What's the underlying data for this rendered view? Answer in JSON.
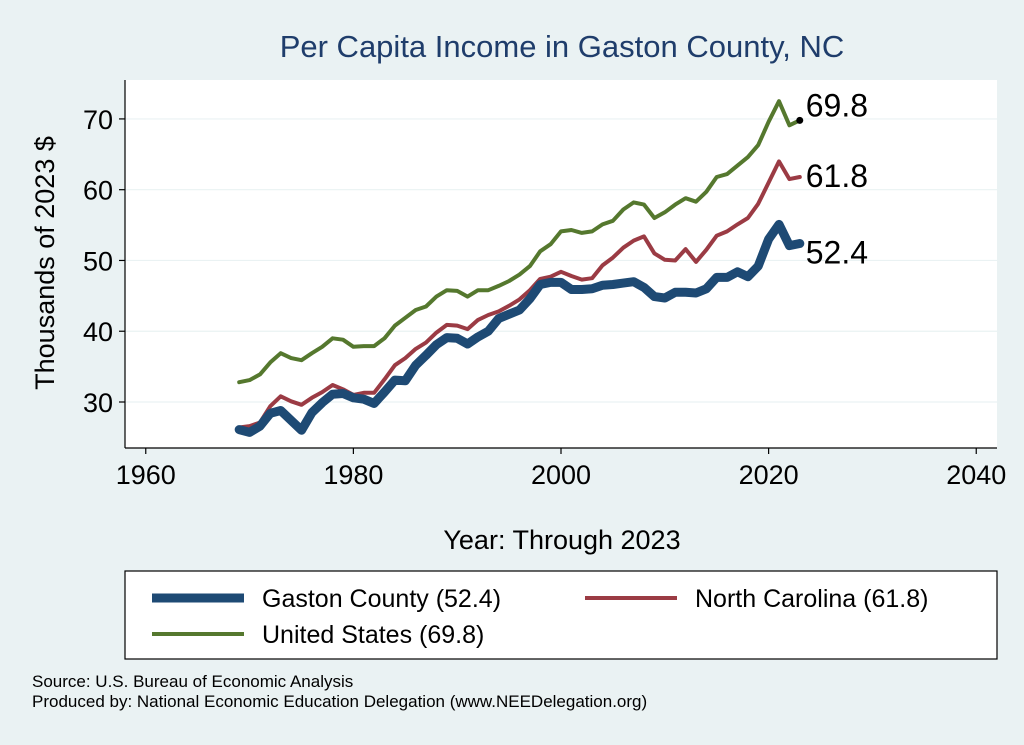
{
  "chart_data": {
    "type": "line",
    "title": "Per Capita Income in Gaston County, NC",
    "xlabel": "Year: Through 2023",
    "ylabel": "Thousands of 2023 $",
    "xlim": [
      1958,
      2042
    ],
    "ylim": [
      23.5,
      75.5
    ],
    "xticks": [
      1960,
      1980,
      2000,
      2020,
      2040
    ],
    "yticks": [
      30,
      40,
      50,
      60,
      70
    ],
    "grid": true,
    "x": [
      1969,
      1970,
      1971,
      1972,
      1973,
      1974,
      1975,
      1976,
      1977,
      1978,
      1979,
      1980,
      1981,
      1982,
      1983,
      1984,
      1985,
      1986,
      1987,
      1988,
      1989,
      1990,
      1991,
      1992,
      1993,
      1994,
      1995,
      1996,
      1997,
      1998,
      1999,
      2000,
      2001,
      2002,
      2003,
      2004,
      2005,
      2006,
      2007,
      2008,
      2009,
      2010,
      2011,
      2012,
      2013,
      2014,
      2015,
      2016,
      2017,
      2018,
      2019,
      2020,
      2021,
      2022,
      2023
    ],
    "series": [
      {
        "name": "United States",
        "color": "#55782e",
        "values": [
          32.8,
          33.1,
          33.9,
          35.6,
          36.9,
          36.2,
          35.9,
          36.9,
          37.8,
          39.0,
          38.8,
          37.8,
          37.9,
          37.9,
          39.0,
          40.8,
          41.9,
          43.0,
          43.5,
          44.9,
          45.8,
          45.7,
          44.9,
          45.8,
          45.8,
          46.4,
          47.1,
          48.0,
          49.2,
          51.3,
          52.3,
          54.1,
          54.3,
          53.9,
          54.1,
          55.1,
          55.6,
          57.2,
          58.2,
          57.9,
          56.0,
          56.8,
          57.9,
          58.8,
          58.3,
          59.7,
          61.8,
          62.2,
          63.4,
          64.6,
          66.3,
          69.6,
          72.5,
          69.1,
          69.8
        ]
      },
      {
        "name": "North Carolina",
        "color": "#9b3b44",
        "values": [
          26.4,
          26.6,
          27.1,
          29.4,
          30.8,
          30.1,
          29.6,
          30.6,
          31.4,
          32.4,
          31.8,
          31.0,
          31.3,
          31.3,
          33.2,
          35.2,
          36.2,
          37.5,
          38.4,
          39.8,
          40.9,
          40.8,
          40.3,
          41.6,
          42.3,
          42.8,
          43.6,
          44.5,
          45.8,
          47.4,
          47.7,
          48.4,
          47.8,
          47.3,
          47.5,
          49.3,
          50.4,
          51.8,
          52.8,
          53.4,
          51.0,
          50.1,
          50.0,
          51.6,
          49.8,
          51.5,
          53.5,
          54.1,
          55.1,
          56.0,
          58.0,
          61.0,
          64.0,
          61.5,
          61.8
        ]
      },
      {
        "name": "Gaston County",
        "color": "#1e4a74",
        "values": [
          26.1,
          25.7,
          26.6,
          28.4,
          28.8,
          27.4,
          26.0,
          28.5,
          29.9,
          31.1,
          31.2,
          30.6,
          30.4,
          29.8,
          31.4,
          33.1,
          33.0,
          35.2,
          36.6,
          38.1,
          39.1,
          39.0,
          38.2,
          39.2,
          40.0,
          41.8,
          42.4,
          43.0,
          44.6,
          46.6,
          46.9,
          46.9,
          45.9,
          45.9,
          46.0,
          46.5,
          46.6,
          46.8,
          47.0,
          46.2,
          44.9,
          44.7,
          45.5,
          45.5,
          45.4,
          46.0,
          47.6,
          47.6,
          48.4,
          47.7,
          49.2,
          53.0,
          55.1,
          52.1,
          52.4
        ]
      }
    ],
    "end_labels": [
      "69.8",
      "61.8",
      "52.4"
    ],
    "legend": [
      {
        "label": "Gaston County (52.4)",
        "color": "#1e4a74"
      },
      {
        "label": "North Carolina (61.8)",
        "color": "#9b3b44"
      },
      {
        "label": "United States (69.8)",
        "color": "#55782e"
      }
    ]
  },
  "notes": {
    "source": "Source: U.S. Bureau of Economic Analysis",
    "produced": "Produced by: National Economic Education Delegation (www.NEEDelegation.org)"
  }
}
